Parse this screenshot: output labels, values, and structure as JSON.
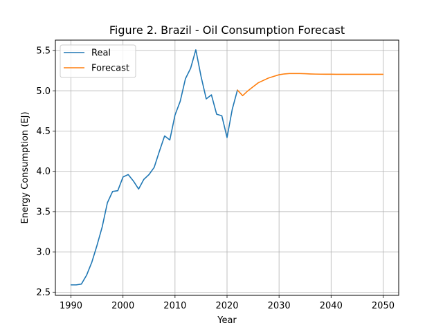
{
  "chart_data": {
    "type": "line",
    "title": "Figure 2. Brazil - Oil Consumption Forecast",
    "xlabel": "Year",
    "ylabel": "Energy Consumption (EJ)",
    "xlim": [
      1987,
      2053
    ],
    "ylim": [
      2.46,
      5.63
    ],
    "xticks": [
      1990,
      2000,
      2010,
      2020,
      2030,
      2040,
      2050
    ],
    "yticks": [
      2.5,
      3.0,
      3.5,
      4.0,
      4.5,
      5.0,
      5.5
    ],
    "grid": true,
    "legend_position": "top-left",
    "series": [
      {
        "name": "Real",
        "color": "#1f77b4",
        "x": [
          1990,
          1991,
          1992,
          1993,
          1994,
          1995,
          1996,
          1997,
          1998,
          1999,
          2000,
          2001,
          2002,
          2003,
          2004,
          2005,
          2006,
          2007,
          2008,
          2009,
          2010,
          2011,
          2012,
          2013,
          2014,
          2015,
          2016,
          2017,
          2018,
          2019,
          2020,
          2021,
          2022
        ],
        "y": [
          2.59,
          2.59,
          2.6,
          2.71,
          2.87,
          3.08,
          3.31,
          3.61,
          3.75,
          3.76,
          3.93,
          3.96,
          3.88,
          3.78,
          3.9,
          3.96,
          4.05,
          4.25,
          4.44,
          4.39,
          4.7,
          4.87,
          5.15,
          5.28,
          5.51,
          5.18,
          4.9,
          4.95,
          4.71,
          4.69,
          4.42,
          4.77,
          5.01
        ]
      },
      {
        "name": "Forecast",
        "color": "#ff7f0e",
        "x": [
          2022,
          2023,
          2024,
          2025,
          2026,
          2027,
          2028,
          2029,
          2030,
          2031,
          2032,
          2033,
          2034,
          2035,
          2036,
          2037,
          2038,
          2039,
          2040,
          2041,
          2042,
          2043,
          2044,
          2045,
          2046,
          2047,
          2048,
          2049,
          2050
        ],
        "y": [
          5.01,
          4.94,
          5.0,
          5.05,
          5.1,
          5.13,
          5.16,
          5.18,
          5.2,
          5.21,
          5.215,
          5.215,
          5.215,
          5.213,
          5.21,
          5.208,
          5.207,
          5.206,
          5.206,
          5.205,
          5.205,
          5.205,
          5.205,
          5.205,
          5.205,
          5.205,
          5.205,
          5.205,
          5.205
        ]
      }
    ]
  }
}
